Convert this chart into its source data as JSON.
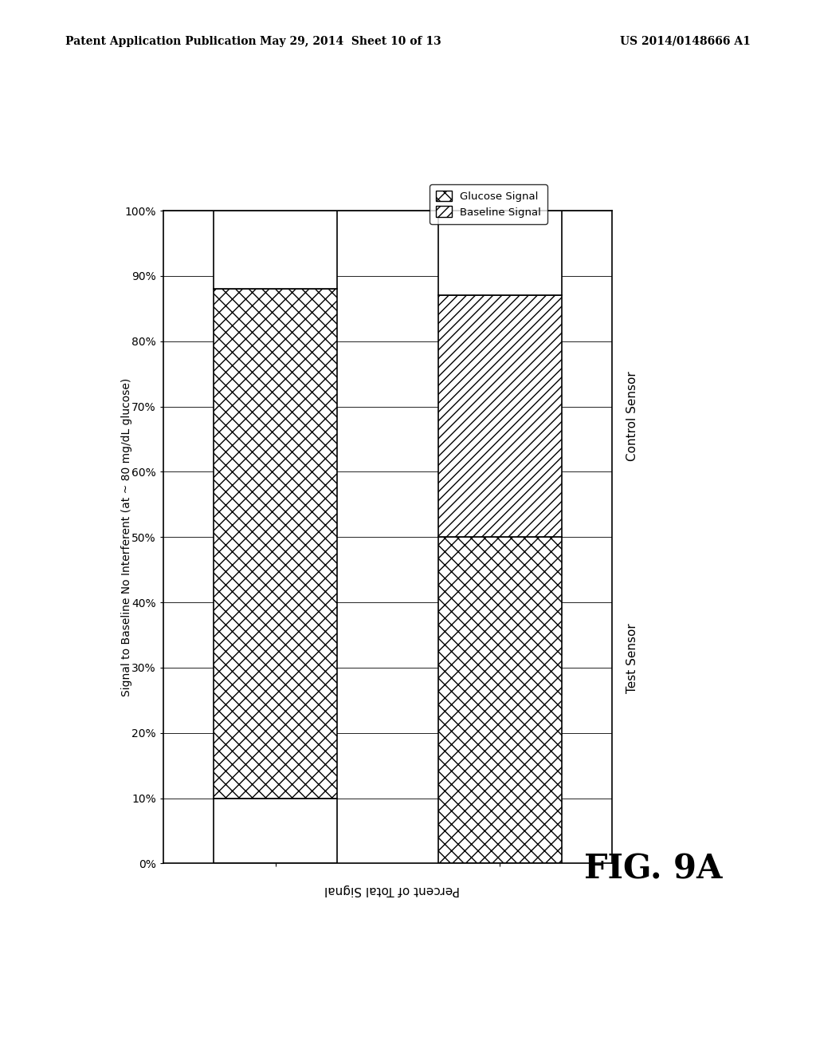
{
  "title": "Signal to Baseline No Interferent (at ~ 80 mg/dL glucose)",
  "xlabel": "Percent of Total Signal",
  "categories": [
    "Test Sensor",
    "Control Sensor"
  ],
  "test_sensor_baseline": 10,
  "test_sensor_glucose": 78,
  "test_sensor_remainder": 12,
  "control_sensor_baseline": 50,
  "control_sensor_glucose": 37,
  "control_sensor_remainder": 13,
  "legend_glucose": "Glucose Signal",
  "legend_baseline": "Baseline Signal",
  "fig_label": "FIG. 9A",
  "header_left": "Patent Application Publication",
  "header_mid": "May 29, 2014  Sheet 10 of 13",
  "header_right": "US 2014/0148666 A1",
  "tick_values": [
    0,
    10,
    20,
    30,
    40,
    50,
    60,
    70,
    80,
    90,
    100
  ],
  "tick_labels": [
    "0%",
    "10%",
    "20%",
    "30%",
    "40%",
    "50%",
    "60%",
    "70%",
    "80%",
    "90%",
    "100%"
  ],
  "background": "#ffffff",
  "bar_color": "#ffffff",
  "hatch_glucose": "xx",
  "hatch_baseline": "///",
  "edge_color": "#000000"
}
